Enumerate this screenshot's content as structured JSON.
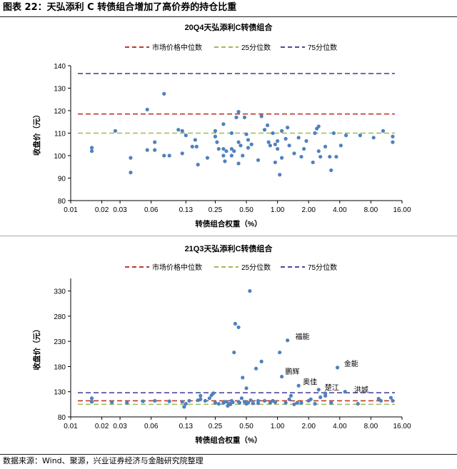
{
  "figure_title": "图表 22：天弘添利 C 转债组合增加了高价券的持仓比重",
  "source": "数据来源：Wind、聚源，兴业证券经济与金融研究院整理",
  "colors": {
    "median": "#c0392b",
    "p25": "#9bbb59",
    "p75": "#4a4a9c",
    "points": "#4f81bd"
  },
  "chart_data": [
    {
      "type": "scatter",
      "title": "20Q4天弘添利C转债组合",
      "xlabel": "转债组合权重（%）",
      "ylabel": "收盘价（元）",
      "xscale": "log2",
      "xticks": [
        "0.01",
        "0.02",
        "0.03",
        "0.06",
        "0.13",
        "0.25",
        "0.50",
        "1.00",
        "2.00",
        "4.00",
        "8.00",
        "16.00"
      ],
      "xlim": [
        0.01,
        16
      ],
      "ylim": [
        80,
        140
      ],
      "yticks": [
        80,
        90,
        100,
        110,
        120,
        130,
        140
      ],
      "legend_position": "top",
      "legend": [
        "市场价格中位数",
        "25分位数",
        "75分位数"
      ],
      "reference_lines": {
        "median": 118.5,
        "p25": 110,
        "p75": 136.5
      },
      "points": [
        [
          0.016,
          103.5
        ],
        [
          0.016,
          102
        ],
        [
          0.027,
          111
        ],
        [
          0.038,
          99
        ],
        [
          0.038,
          92.5
        ],
        [
          0.055,
          120.5
        ],
        [
          0.055,
          102.5
        ],
        [
          0.065,
          106
        ],
        [
          0.065,
          102.5
        ],
        [
          0.08,
          127.5
        ],
        [
          0.08,
          100
        ],
        [
          0.09,
          100
        ],
        [
          0.11,
          111.5
        ],
        [
          0.12,
          111
        ],
        [
          0.12,
          101
        ],
        [
          0.13,
          109
        ],
        [
          0.15,
          104
        ],
        [
          0.165,
          104
        ],
        [
          0.17,
          96
        ],
        [
          0.16,
          107
        ],
        [
          0.21,
          99
        ],
        [
          0.25,
          111
        ],
        [
          0.25,
          108.5
        ],
        [
          0.26,
          106
        ],
        [
          0.27,
          103
        ],
        [
          0.3,
          114
        ],
        [
          0.3,
          103
        ],
        [
          0.3,
          100
        ],
        [
          0.31,
          97.5
        ],
        [
          0.32,
          102
        ],
        [
          0.36,
          110
        ],
        [
          0.36,
          103
        ],
        [
          0.36,
          100
        ],
        [
          0.38,
          102
        ],
        [
          0.4,
          117
        ],
        [
          0.42,
          119.5
        ],
        [
          0.42,
          96.5
        ],
        [
          0.42,
          106
        ],
        [
          0.44,
          104.5
        ],
        [
          0.46,
          100
        ],
        [
          0.48,
          117
        ],
        [
          0.5,
          109.5
        ],
        [
          0.52,
          107
        ],
        [
          0.52,
          103.5
        ],
        [
          0.56,
          105
        ],
        [
          0.65,
          98
        ],
        [
          0.7,
          117.5
        ],
        [
          0.75,
          111.5
        ],
        [
          0.8,
          113.5
        ],
        [
          0.82,
          106
        ],
        [
          0.85,
          104.5
        ],
        [
          0.9,
          110
        ],
        [
          0.95,
          105
        ],
        [
          0.95,
          97
        ],
        [
          1.0,
          106.5
        ],
        [
          1.0,
          103
        ],
        [
          1.05,
          91.5
        ],
        [
          1.1,
          111
        ],
        [
          1.1,
          99
        ],
        [
          1.2,
          107.5
        ],
        [
          1.25,
          112.5
        ],
        [
          1.3,
          104.5
        ],
        [
          1.45,
          101
        ],
        [
          1.6,
          108
        ],
        [
          1.7,
          99.5
        ],
        [
          1.8,
          103
        ],
        [
          1.9,
          106.5
        ],
        [
          2.2,
          97
        ],
        [
          2.3,
          110
        ],
        [
          2.4,
          112
        ],
        [
          2.5,
          113
        ],
        [
          2.5,
          102
        ],
        [
          2.6,
          99.5
        ],
        [
          2.9,
          104
        ],
        [
          3.2,
          99.5
        ],
        [
          3.3,
          93.5
        ],
        [
          3.5,
          110
        ],
        [
          3.7,
          99.5
        ],
        [
          4.1,
          104.5
        ],
        [
          4.6,
          109
        ],
        [
          6.3,
          109
        ],
        [
          8.5,
          108
        ],
        [
          10.5,
          111
        ],
        [
          13,
          108.5
        ],
        [
          13,
          106
        ]
      ]
    },
    {
      "type": "scatter",
      "title": "21Q3天弘添利C转债组合",
      "xlabel": "转债组合权重（%）",
      "ylabel": "收盘价（元）",
      "xscale": "log2",
      "xticks": [
        "0.01",
        "0.02",
        "0.03",
        "0.06",
        "0.13",
        "0.25",
        "0.50",
        "1.00",
        "2.00",
        "4.00",
        "8.00",
        "16.00"
      ],
      "xlim": [
        0.01,
        16
      ],
      "ylim": [
        80,
        355
      ],
      "yticks": [
        80,
        130,
        180,
        230,
        280,
        330
      ],
      "legend_position": "top",
      "legend": [
        "市场价格中位数",
        "25分位数",
        "75分位数"
      ],
      "reference_lines": {
        "median": 112,
        "p25": 105,
        "p75": 128
      },
      "annotations": [
        {
          "text": "福能",
          "x": 1.35,
          "y": 232
        },
        {
          "text": "鹏辉",
          "x": 1.08,
          "y": 162
        },
        {
          "text": "奥佳",
          "x": 1.6,
          "y": 142
        },
        {
          "text": "楚江",
          "x": 2.6,
          "y": 130
        },
        {
          "text": "金能",
          "x": 4.0,
          "y": 178
        },
        {
          "text": "洪城",
          "x": 5.0,
          "y": 126
        }
      ],
      "points": [
        [
          0.016,
          117
        ],
        [
          0.016,
          110
        ],
        [
          0.025,
          109
        ],
        [
          0.035,
          108
        ],
        [
          0.05,
          111
        ],
        [
          0.065,
          112
        ],
        [
          0.09,
          111
        ],
        [
          0.12,
          110
        ],
        [
          0.125,
          100
        ],
        [
          0.13,
          106
        ],
        [
          0.14,
          112
        ],
        [
          0.17,
          113
        ],
        [
          0.18,
          122
        ],
        [
          0.18,
          115
        ],
        [
          0.2,
          112
        ],
        [
          0.22,
          117
        ],
        [
          0.23,
          123
        ],
        [
          0.24,
          127
        ],
        [
          0.25,
          108
        ],
        [
          0.27,
          106
        ],
        [
          0.3,
          108
        ],
        [
          0.31,
          110
        ],
        [
          0.32,
          110
        ],
        [
          0.33,
          102
        ],
        [
          0.34,
          106
        ],
        [
          0.35,
          105
        ],
        [
          0.36,
          112
        ],
        [
          0.37,
          109
        ],
        [
          0.38,
          208
        ],
        [
          0.39,
          265
        ],
        [
          0.42,
          110
        ],
        [
          0.42,
          258
        ],
        [
          0.43,
          108
        ],
        [
          0.45,
          117
        ],
        [
          0.46,
          158
        ],
        [
          0.48,
          110
        ],
        [
          0.5,
          137
        ],
        [
          0.5,
          106
        ],
        [
          0.52,
          108
        ],
        [
          0.54,
          330
        ],
        [
          0.55,
          113
        ],
        [
          0.58,
          107
        ],
        [
          0.62,
          176
        ],
        [
          0.65,
          112
        ],
        [
          0.65,
          107
        ],
        [
          0.7,
          190
        ],
        [
          0.75,
          112
        ],
        [
          0.85,
          108
        ],
        [
          0.9,
          112
        ],
        [
          0.95,
          109
        ],
        [
          1.05,
          208
        ],
        [
          1.1,
          160
        ],
        [
          1.2,
          108
        ],
        [
          1.25,
          232
        ],
        [
          1.3,
          115
        ],
        [
          1.35,
          122
        ],
        [
          1.45,
          105
        ],
        [
          1.55,
          108
        ],
        [
          1.6,
          142
        ],
        [
          1.7,
          108
        ],
        [
          2.0,
          112
        ],
        [
          2.1,
          115
        ],
        [
          2.3,
          106
        ],
        [
          2.5,
          134
        ],
        [
          2.6,
          119
        ],
        [
          2.9,
          127
        ],
        [
          2.9,
          122
        ],
        [
          3.3,
          108
        ],
        [
          3.8,
          178
        ],
        [
          4.5,
          130
        ],
        [
          6.0,
          106
        ],
        [
          9.5,
          116
        ],
        [
          10.0,
          112
        ],
        [
          12.5,
          118
        ],
        [
          13,
          112
        ]
      ]
    }
  ]
}
